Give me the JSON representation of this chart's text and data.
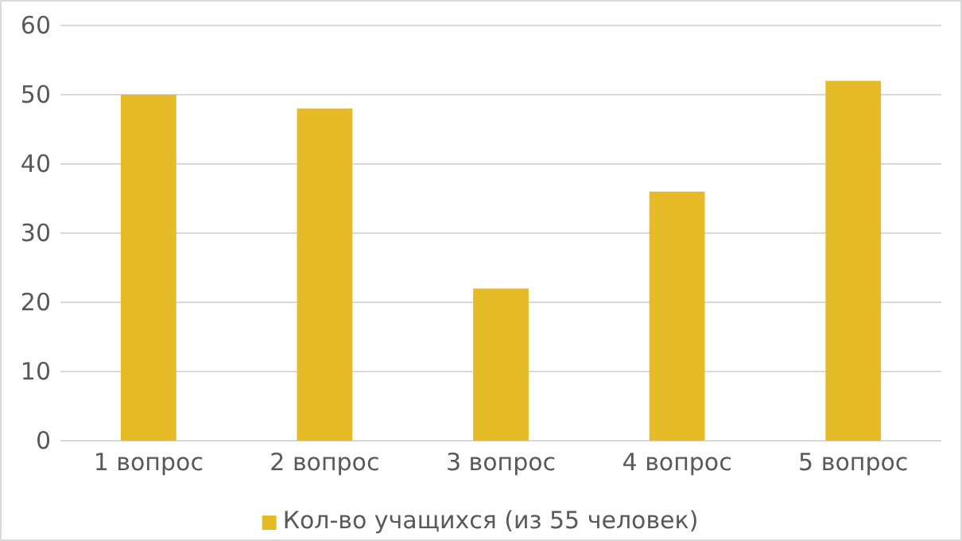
{
  "chart_data": {
    "type": "bar",
    "categories": [
      "1 вопрос",
      "2 вопрос",
      "3 вопрос",
      "4 вопрос",
      "5 вопрос"
    ],
    "series": [
      {
        "name": "Кол-во учащихся (из 55 человек)",
        "color": "#e5bc27",
        "values": [
          50,
          48,
          22,
          36,
          52
        ]
      }
    ],
    "ylim": [
      0,
      60
    ],
    "yticks": [
      0,
      10,
      20,
      30,
      40,
      50,
      60
    ],
    "grid": "y",
    "legend": "bottom"
  }
}
